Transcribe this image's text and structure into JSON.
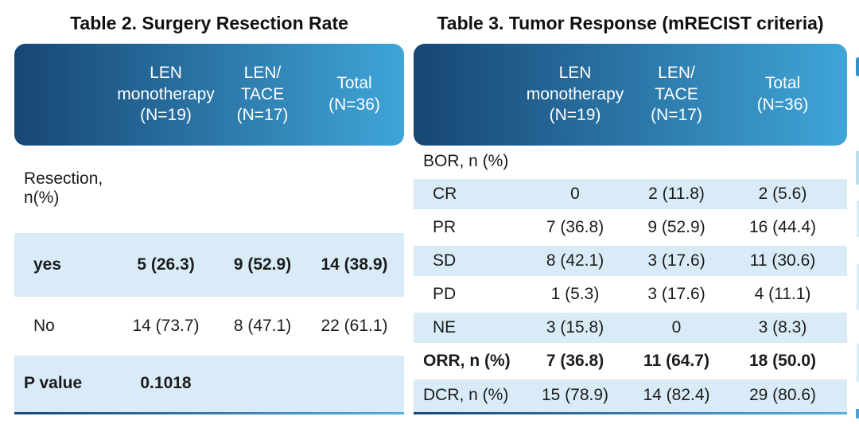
{
  "colors": {
    "header-start": "#174674",
    "header-end": "#3fa5d8",
    "row-shade": "#d9ebf7",
    "rule-start": "#1b4676",
    "rule-end": "#54aedd"
  },
  "table2": {
    "title": "Table 2. Surgery Resection Rate",
    "col_headers": [
      "LEN\nmonotherapy\n(N=19)",
      "LEN/\nTACE\n(N=17)",
      "Total\n(N=36)"
    ],
    "group_label": "Resection, n(%)",
    "rows": [
      {
        "label": "yes",
        "v1": "5 (26.3)",
        "v2": "9 (52.9)",
        "v3": "14 (38.9)"
      },
      {
        "label": "No",
        "v1": "14 (73.7)",
        "v2": "8 (47.1)",
        "v3": "22 (61.1)"
      },
      {
        "label": "P value",
        "v1": "0.1018",
        "v2": "",
        "v3": ""
      }
    ]
  },
  "table3": {
    "title": "Table 3. Tumor Response (mRECIST criteria)",
    "col_headers": [
      "LEN\nmonotherapy\n(N=19)",
      "LEN/\nTACE\n(N=17)",
      "Total\n(N=36)"
    ],
    "rows": [
      {
        "label": "BOR, n (%)",
        "v1": "",
        "v2": "",
        "v3": ""
      },
      {
        "label": "CR",
        "v1": "0",
        "v2": "2 (11.8)",
        "v3": "2 (5.6)"
      },
      {
        "label": "PR",
        "v1": "7 (36.8)",
        "v2": "9 (52.9)",
        "v3": "16 (44.4)"
      },
      {
        "label": "SD",
        "v1": "8 (42.1)",
        "v2": "3 (17.6)",
        "v3": "11 (30.6)"
      },
      {
        "label": "PD",
        "v1": "1 (5.3)",
        "v2": "3 (17.6)",
        "v3": "4 (11.1)"
      },
      {
        "label": "NE",
        "v1": "3 (15.8)",
        "v2": "0",
        "v3": "3 (8.3)"
      },
      {
        "label": "ORR, n (%)",
        "v1": "7 (36.8)",
        "v2": "11 (64.7)",
        "v3": "18 (50.0)"
      },
      {
        "label": "DCR, n (%)",
        "v1": "15 (78.9)",
        "v2": "14 (82.4)",
        "v3": "29 (80.6)"
      }
    ]
  }
}
